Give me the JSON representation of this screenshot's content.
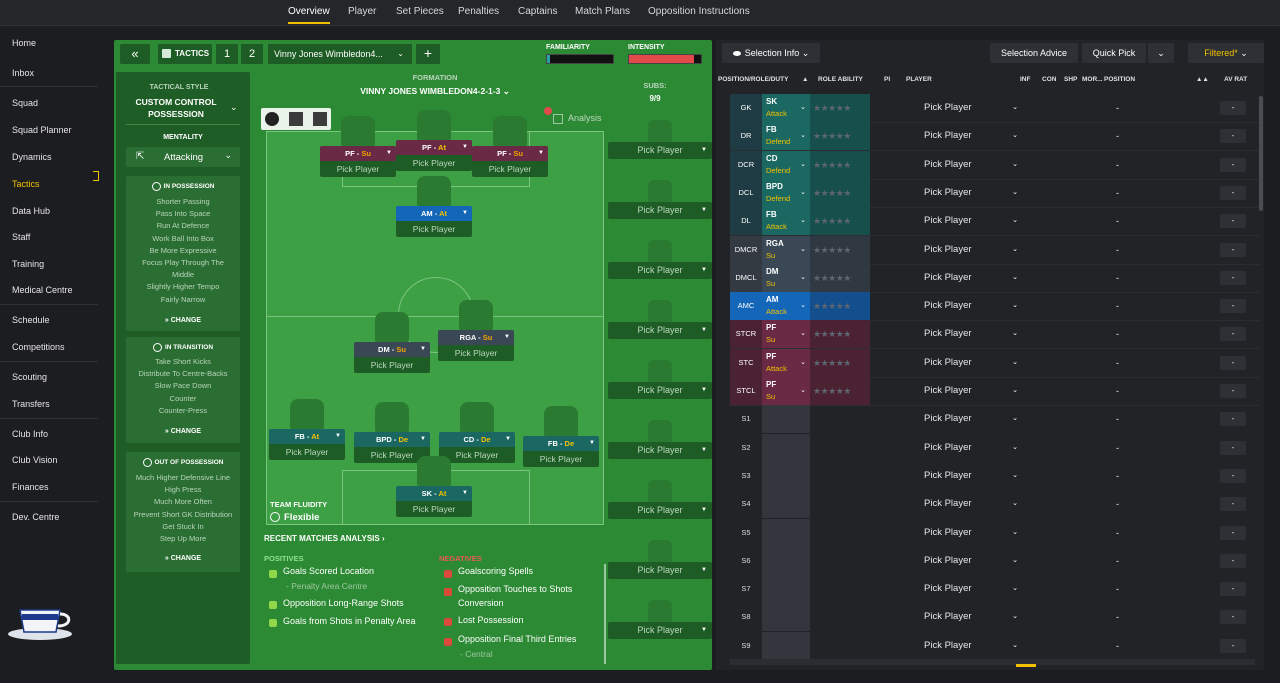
{
  "top_tabs": [
    "Overview",
    "Player",
    "Set Pieces",
    "Penalties",
    "Captains",
    "Match Plans",
    "Opposition Instructions"
  ],
  "sidebar": {
    "items": [
      "Home",
      "Inbox",
      "Squad",
      "Squad Planner",
      "Dynamics",
      "Tactics",
      "Data Hub",
      "Staff",
      "Training",
      "Medical Centre",
      "Schedule",
      "Competitions",
      "Scouting",
      "Transfers",
      "Club Info",
      "Club Vision",
      "Finances",
      "Dev. Centre"
    ],
    "active": "Tactics"
  },
  "tactics_bar": {
    "label": "TACTICS",
    "slot1": "1",
    "slot2": "2",
    "tactic_name": "Vinny Jones Wimbledon4...",
    "familiarity_label": "FAMILIARITY",
    "intensity_label": "INTENSITY",
    "familiarity_value": 0.05,
    "intensity_value": 0.9
  },
  "style_panel": {
    "tactical_style_label": "TACTICAL STYLE",
    "style_line1": "CUSTOM CONTROL",
    "style_line2": "POSSESSION",
    "mentality_label": "MENTALITY",
    "mentality_value": "Attacking",
    "in_possession": {
      "title": "IN POSSESSION",
      "items": [
        "Shorter Passing",
        "Pass Into Space",
        "Run At Defence",
        "Work Ball Into Box",
        "Be More Expressive",
        "Focus Play Through The Middle",
        "Slightly Higher Tempo",
        "Fairly Narrow"
      ]
    },
    "in_transition": {
      "title": "IN TRANSITION",
      "items": [
        "Take Short Kicks",
        "Distribute To Centre-Backs",
        "Slow Pace Down",
        "Counter",
        "Counter-Press"
      ]
    },
    "out_of_possession": {
      "title": "OUT OF POSSESSION",
      "items": [
        "Much Higher Defensive Line",
        "High Press",
        "Much More Often",
        "Prevent Short GK Distribution",
        "Get Stuck In",
        "Step Up More"
      ]
    },
    "change_label": "CHANGE"
  },
  "formation": {
    "label": "FORMATION",
    "name": "VINNY JONES WIMBLEDON4-2-1-3",
    "subs_label": "SUBS:",
    "subs_count": "9/9",
    "analysis_label": "Analysis",
    "team_fluidity_label": "TEAM FLUIDITY",
    "team_fluidity_value": "Flexible",
    "pick_player": "Pick Player",
    "players": [
      {
        "role": "PF",
        "duty": "Su"
      },
      {
        "role": "PF",
        "duty": "At"
      },
      {
        "role": "PF",
        "duty": "Su"
      },
      {
        "role": "AM",
        "duty": "At"
      },
      {
        "role": "DM",
        "duty": "Su"
      },
      {
        "role": "RGA",
        "duty": "Su"
      },
      {
        "role": "FB",
        "duty": "At"
      },
      {
        "role": "BPD",
        "duty": "De"
      },
      {
        "role": "CD",
        "duty": "De"
      },
      {
        "role": "FB",
        "duty": "De"
      },
      {
        "role": "SK",
        "duty": "At"
      }
    ]
  },
  "analysis": {
    "title": "RECENT MATCHES ANALYSIS",
    "positives_label": "POSITIVES",
    "negatives_label": "NEGATIVES",
    "positives": [
      {
        "text": "Goals Scored Location",
        "sub": "- Penalty Area Centre"
      },
      {
        "text": "Opposition Long-Range Shots",
        "sub": ""
      },
      {
        "text": "Goals from Shots in Penalty Area",
        "sub": ""
      }
    ],
    "negatives": [
      {
        "text": "Goalscoring Spells",
        "sub": ""
      },
      {
        "text": "Opposition Touches to Shots",
        "sub": "Conversion"
      },
      {
        "text": "Lost Possession",
        "sub": ""
      },
      {
        "text": "Opposition Final Third Entries",
        "sub": "- Central"
      }
    ]
  },
  "right_panel": {
    "selection_info": "Selection Info",
    "selection_advice": "Selection Advice",
    "quick_pick": "Quick Pick",
    "filtered": "Filtered*",
    "columns": {
      "position": "POSITION/ROLE/DUTY",
      "role_ability": "ROLE ABILITY",
      "pi": "PI",
      "player": "PLAYER",
      "inf": "INF",
      "con": "CON",
      "shp": "SHP",
      "mor": "MOR...",
      "position2": "POSITION",
      "av_rat": "AV RAT"
    },
    "stars": "★★★★★",
    "dash": "-",
    "rows": [
      {
        "pos": "GK",
        "role": "SK",
        "duty": "Attack"
      },
      {
        "pos": "DR",
        "role": "FB",
        "duty": "Defend"
      },
      {
        "pos": "DCR",
        "role": "CD",
        "duty": "Defend"
      },
      {
        "pos": "DCL",
        "role": "BPD",
        "duty": "Defend"
      },
      {
        "pos": "DL",
        "role": "FB",
        "duty": "Attack"
      },
      {
        "pos": "DMCR",
        "role": "RGA",
        "duty": "Su"
      },
      {
        "pos": "DMCL",
        "role": "DM",
        "duty": "Su"
      },
      {
        "pos": "AMC",
        "role": "AM",
        "duty": "Attack"
      },
      {
        "pos": "STCR",
        "role": "PF",
        "duty": "Su"
      },
      {
        "pos": "STC",
        "role": "PF",
        "duty": "Attack"
      },
      {
        "pos": "STCL",
        "role": "PF",
        "duty": "Su"
      }
    ],
    "subs": [
      "S1",
      "S2",
      "S3",
      "S4",
      "S5",
      "S6",
      "S7",
      "S8",
      "S9"
    ]
  },
  "colors": {
    "accent": "#f2c200",
    "pitch": "#3ea045",
    "panel_green": "#2d8a34",
    "attack_purple": "#6a2a45",
    "am_blue": "#1466b8",
    "dm_slate": "#3a4856",
    "def_teal": "#1b6862"
  }
}
